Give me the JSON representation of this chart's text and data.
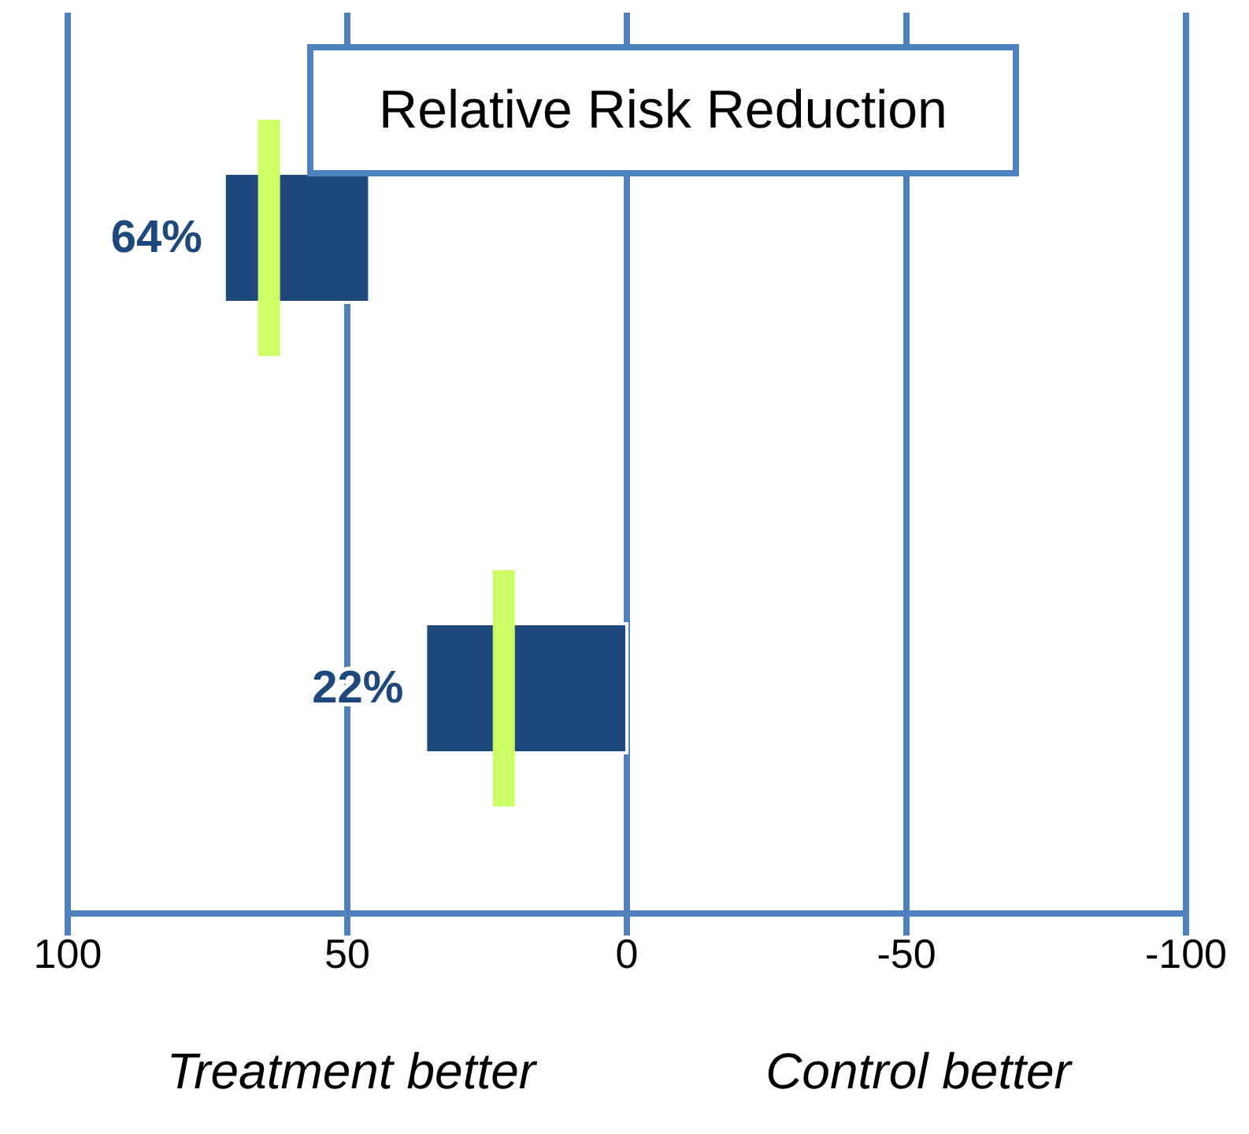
{
  "chart_data": {
    "type": "bar",
    "orientation": "horizontal",
    "title": "Relative Risk Reduction",
    "categories": [
      null,
      null
    ],
    "series": [
      {
        "color": "#1f497d",
        "base": [
          46,
          0
        ],
        "values": [
          26,
          36
        ]
      },
      {
        "type": "scatter",
        "color": "#ccff66",
        "values": [
          64,
          22
        ],
        "value_labels": [
          "64%",
          "22%"
        ]
      }
    ],
    "xlim": [
      100,
      -100
    ],
    "xticks": [
      100,
      50,
      0,
      -50,
      -100
    ],
    "grid": "x",
    "tick_labels": "x",
    "annotations": [
      "Treatment better",
      "Control better"
    ]
  }
}
